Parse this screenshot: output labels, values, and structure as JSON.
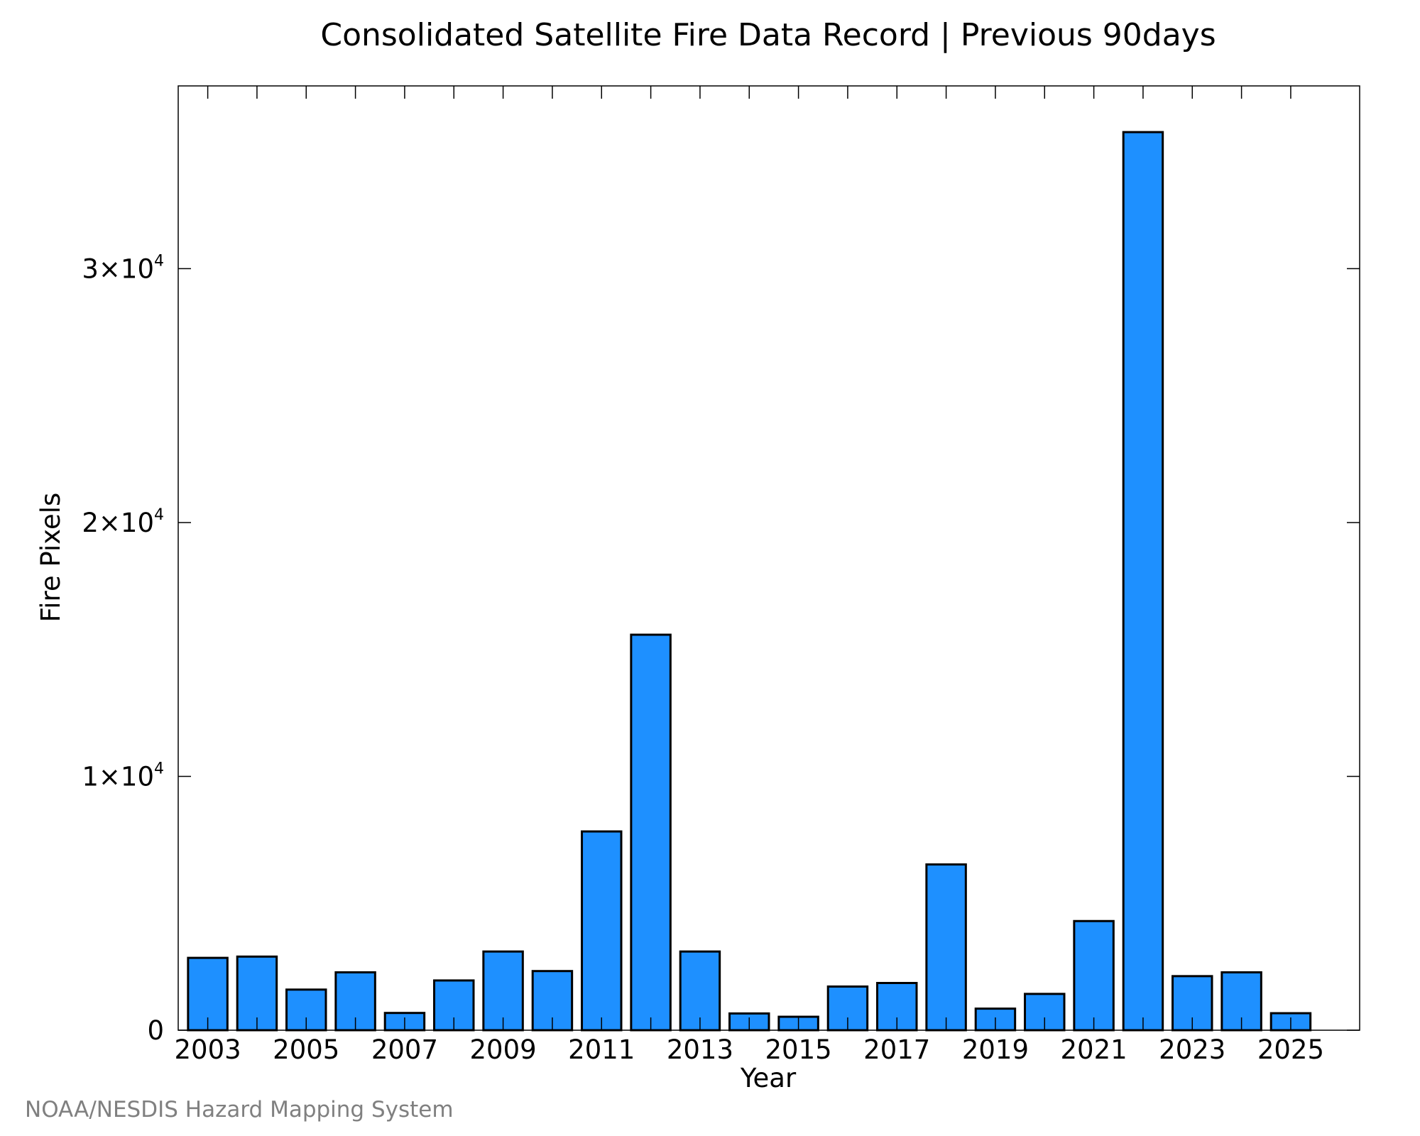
{
  "chart_data": {
    "type": "bar",
    "title": "Consolidated Satellite Fire Data Record | Previous 90days",
    "xlabel": "Year",
    "ylabel": "Fire Pixels",
    "credit": "NOAA/NESDIS Hazard Mapping System",
    "categories": [
      2003,
      2004,
      2005,
      2006,
      2007,
      2008,
      2009,
      2010,
      2011,
      2012,
      2013,
      2014,
      2015,
      2016,
      2017,
      2018,
      2019,
      2020,
      2021,
      2022,
      2023,
      2024,
      2025
    ],
    "values": [
      2850,
      2900,
      1600,
      2280,
      680,
      1960,
      3100,
      2330,
      7830,
      15580,
      3100,
      660,
      530,
      1720,
      1860,
      6530,
      850,
      1430,
      4300,
      35380,
      2130,
      2280,
      670
    ],
    "x_tick_labels": [
      "2003",
      "2005",
      "2007",
      "2009",
      "2011",
      "2013",
      "2015",
      "2017",
      "2019",
      "2021",
      "2023",
      "2025"
    ],
    "y_ticks": [
      {
        "value": 0,
        "mantissa": "0",
        "exponent": ""
      },
      {
        "value": 10000,
        "mantissa": "1×10",
        "exponent": "4"
      },
      {
        "value": 20000,
        "mantissa": "2×10",
        "exponent": "4"
      },
      {
        "value": 30000,
        "mantissa": "3×10",
        "exponent": "4"
      }
    ],
    "xlim": [
      2002.4,
      2026.4
    ],
    "ylim": [
      0,
      37200
    ],
    "bar_color": "#1e90ff",
    "bar_edge_color": "#000000",
    "grid": false,
    "legend": "none"
  }
}
